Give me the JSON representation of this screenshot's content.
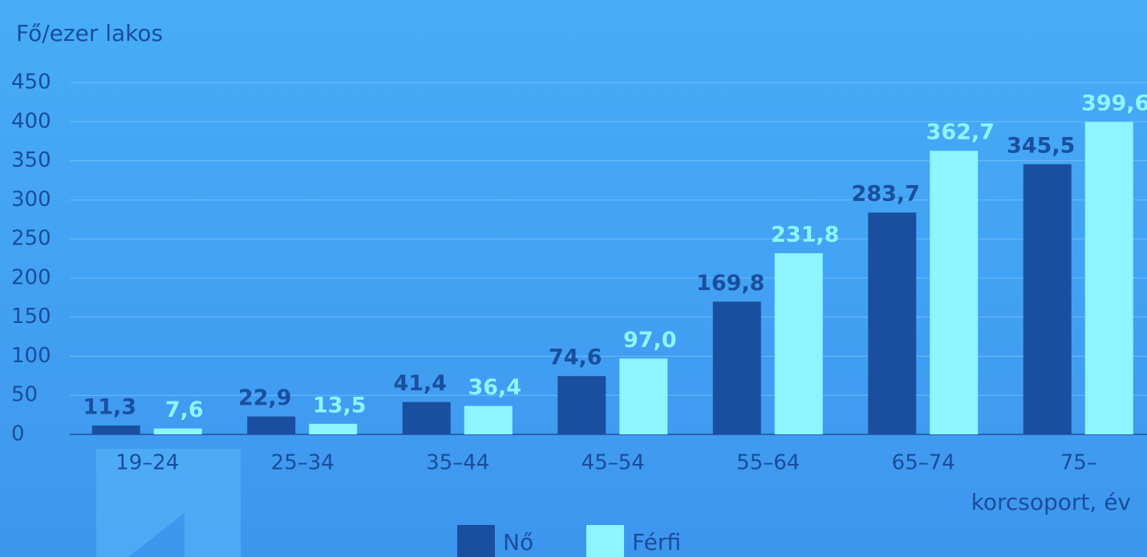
{
  "chart_data": {
    "type": "bar",
    "y_axis_label": "Fő/ezer lakos",
    "x_axis_label": "korcsoport, év",
    "categories": [
      "19–24",
      "25–34",
      "35–44",
      "45–54",
      "55–64",
      "65–74",
      "75–"
    ],
    "series": [
      {
        "name": "Nő",
        "color": "#1a4fa0",
        "values": [
          11.3,
          22.9,
          41.4,
          74.6,
          169.8,
          283.7,
          345.5
        ],
        "value_labels": [
          "11,3",
          "22,9",
          "41,4",
          "74,6",
          "169,8",
          "283,7",
          "345,5"
        ]
      },
      {
        "name": "Férfi",
        "color": "#8ef4ff",
        "values": [
          7.6,
          13.5,
          36.4,
          97.0,
          231.8,
          362.7,
          399.6
        ],
        "value_labels": [
          "7,6",
          "13,5",
          "36,4",
          "97,0",
          "231,8",
          "362,7",
          "399,6"
        ]
      }
    ],
    "ylim": [
      0,
      450
    ],
    "yticks": [
      0,
      50,
      100,
      150,
      200,
      250,
      300,
      350,
      400,
      450
    ],
    "grid": true
  }
}
